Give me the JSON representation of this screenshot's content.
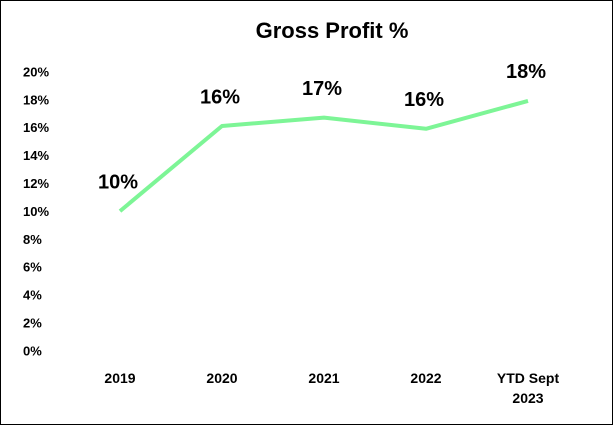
{
  "chart_data": {
    "type": "line",
    "title": "Gross Profit %",
    "categories": [
      "2019",
      "2020",
      "2021",
      "2022",
      "YTD Sept 2023"
    ],
    "series": [
      {
        "name": "Gross Profit %",
        "color": "#7df596",
        "values": [
          10.1,
          16.2,
          16.8,
          16.0,
          18.0
        ],
        "value_labels": [
          "10%",
          "16%",
          "17%",
          "16%",
          "18%"
        ]
      }
    ],
    "ylim": [
      0,
      20
    ],
    "yticks": [
      {
        "value": 0,
        "label": "0%"
      },
      {
        "value": 2,
        "label": "2%"
      },
      {
        "value": 4,
        "label": "4%"
      },
      {
        "value": 6,
        "label": "6%"
      },
      {
        "value": 8,
        "label": "8%"
      },
      {
        "value": 10,
        "label": "10%"
      },
      {
        "value": 12,
        "label": "12%"
      },
      {
        "value": 14,
        "label": "14%"
      },
      {
        "value": 16,
        "label": "16%"
      },
      {
        "value": 18,
        "label": "18%"
      },
      {
        "value": 20,
        "label": "20%"
      }
    ],
    "grid": false
  }
}
